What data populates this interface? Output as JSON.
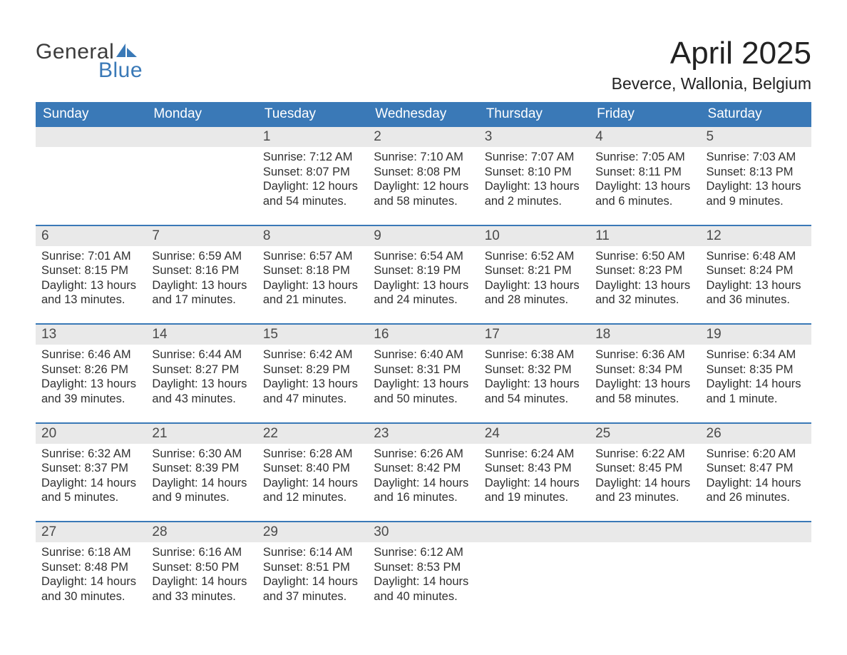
{
  "logo": {
    "word1": "General",
    "word2": "Blue",
    "text_color": "#3c3c3c",
    "accent_color": "#3a79b7"
  },
  "title": "April 2025",
  "location": "Beverce, Wallonia, Belgium",
  "colors": {
    "header_bg": "#3a79b7",
    "header_text": "#ffffff",
    "daynum_bg": "#e9e9e9",
    "daynum_text": "#4a4a4a",
    "body_text": "#303030",
    "week_divider": "#3a79b7",
    "page_bg": "#ffffff"
  },
  "type": "calendar-table",
  "columns": [
    "Sunday",
    "Monday",
    "Tuesday",
    "Wednesday",
    "Thursday",
    "Friday",
    "Saturday"
  ],
  "weeks": [
    [
      {
        "day": "",
        "sunrise": "",
        "sunset": "",
        "daylight": ""
      },
      {
        "day": "",
        "sunrise": "",
        "sunset": "",
        "daylight": ""
      },
      {
        "day": "1",
        "sunrise": "Sunrise: 7:12 AM",
        "sunset": "Sunset: 8:07 PM",
        "daylight": "Daylight: 12 hours and 54 minutes."
      },
      {
        "day": "2",
        "sunrise": "Sunrise: 7:10 AM",
        "sunset": "Sunset: 8:08 PM",
        "daylight": "Daylight: 12 hours and 58 minutes."
      },
      {
        "day": "3",
        "sunrise": "Sunrise: 7:07 AM",
        "sunset": "Sunset: 8:10 PM",
        "daylight": "Daylight: 13 hours and 2 minutes."
      },
      {
        "day": "4",
        "sunrise": "Sunrise: 7:05 AM",
        "sunset": "Sunset: 8:11 PM",
        "daylight": "Daylight: 13 hours and 6 minutes."
      },
      {
        "day": "5",
        "sunrise": "Sunrise: 7:03 AM",
        "sunset": "Sunset: 8:13 PM",
        "daylight": "Daylight: 13 hours and 9 minutes."
      }
    ],
    [
      {
        "day": "6",
        "sunrise": "Sunrise: 7:01 AM",
        "sunset": "Sunset: 8:15 PM",
        "daylight": "Daylight: 13 hours and 13 minutes."
      },
      {
        "day": "7",
        "sunrise": "Sunrise: 6:59 AM",
        "sunset": "Sunset: 8:16 PM",
        "daylight": "Daylight: 13 hours and 17 minutes."
      },
      {
        "day": "8",
        "sunrise": "Sunrise: 6:57 AM",
        "sunset": "Sunset: 8:18 PM",
        "daylight": "Daylight: 13 hours and 21 minutes."
      },
      {
        "day": "9",
        "sunrise": "Sunrise: 6:54 AM",
        "sunset": "Sunset: 8:19 PM",
        "daylight": "Daylight: 13 hours and 24 minutes."
      },
      {
        "day": "10",
        "sunrise": "Sunrise: 6:52 AM",
        "sunset": "Sunset: 8:21 PM",
        "daylight": "Daylight: 13 hours and 28 minutes."
      },
      {
        "day": "11",
        "sunrise": "Sunrise: 6:50 AM",
        "sunset": "Sunset: 8:23 PM",
        "daylight": "Daylight: 13 hours and 32 minutes."
      },
      {
        "day": "12",
        "sunrise": "Sunrise: 6:48 AM",
        "sunset": "Sunset: 8:24 PM",
        "daylight": "Daylight: 13 hours and 36 minutes."
      }
    ],
    [
      {
        "day": "13",
        "sunrise": "Sunrise: 6:46 AM",
        "sunset": "Sunset: 8:26 PM",
        "daylight": "Daylight: 13 hours and 39 minutes."
      },
      {
        "day": "14",
        "sunrise": "Sunrise: 6:44 AM",
        "sunset": "Sunset: 8:27 PM",
        "daylight": "Daylight: 13 hours and 43 minutes."
      },
      {
        "day": "15",
        "sunrise": "Sunrise: 6:42 AM",
        "sunset": "Sunset: 8:29 PM",
        "daylight": "Daylight: 13 hours and 47 minutes."
      },
      {
        "day": "16",
        "sunrise": "Sunrise: 6:40 AM",
        "sunset": "Sunset: 8:31 PM",
        "daylight": "Daylight: 13 hours and 50 minutes."
      },
      {
        "day": "17",
        "sunrise": "Sunrise: 6:38 AM",
        "sunset": "Sunset: 8:32 PM",
        "daylight": "Daylight: 13 hours and 54 minutes."
      },
      {
        "day": "18",
        "sunrise": "Sunrise: 6:36 AM",
        "sunset": "Sunset: 8:34 PM",
        "daylight": "Daylight: 13 hours and 58 minutes."
      },
      {
        "day": "19",
        "sunrise": "Sunrise: 6:34 AM",
        "sunset": "Sunset: 8:35 PM",
        "daylight": "Daylight: 14 hours and 1 minute."
      }
    ],
    [
      {
        "day": "20",
        "sunrise": "Sunrise: 6:32 AM",
        "sunset": "Sunset: 8:37 PM",
        "daylight": "Daylight: 14 hours and 5 minutes."
      },
      {
        "day": "21",
        "sunrise": "Sunrise: 6:30 AM",
        "sunset": "Sunset: 8:39 PM",
        "daylight": "Daylight: 14 hours and 9 minutes."
      },
      {
        "day": "22",
        "sunrise": "Sunrise: 6:28 AM",
        "sunset": "Sunset: 8:40 PM",
        "daylight": "Daylight: 14 hours and 12 minutes."
      },
      {
        "day": "23",
        "sunrise": "Sunrise: 6:26 AM",
        "sunset": "Sunset: 8:42 PM",
        "daylight": "Daylight: 14 hours and 16 minutes."
      },
      {
        "day": "24",
        "sunrise": "Sunrise: 6:24 AM",
        "sunset": "Sunset: 8:43 PM",
        "daylight": "Daylight: 14 hours and 19 minutes."
      },
      {
        "day": "25",
        "sunrise": "Sunrise: 6:22 AM",
        "sunset": "Sunset: 8:45 PM",
        "daylight": "Daylight: 14 hours and 23 minutes."
      },
      {
        "day": "26",
        "sunrise": "Sunrise: 6:20 AM",
        "sunset": "Sunset: 8:47 PM",
        "daylight": "Daylight: 14 hours and 26 minutes."
      }
    ],
    [
      {
        "day": "27",
        "sunrise": "Sunrise: 6:18 AM",
        "sunset": "Sunset: 8:48 PM",
        "daylight": "Daylight: 14 hours and 30 minutes."
      },
      {
        "day": "28",
        "sunrise": "Sunrise: 6:16 AM",
        "sunset": "Sunset: 8:50 PM",
        "daylight": "Daylight: 14 hours and 33 minutes."
      },
      {
        "day": "29",
        "sunrise": "Sunrise: 6:14 AM",
        "sunset": "Sunset: 8:51 PM",
        "daylight": "Daylight: 14 hours and 37 minutes."
      },
      {
        "day": "30",
        "sunrise": "Sunrise: 6:12 AM",
        "sunset": "Sunset: 8:53 PM",
        "daylight": "Daylight: 14 hours and 40 minutes."
      },
      {
        "day": "",
        "sunrise": "",
        "sunset": "",
        "daylight": ""
      },
      {
        "day": "",
        "sunrise": "",
        "sunset": "",
        "daylight": ""
      },
      {
        "day": "",
        "sunrise": "",
        "sunset": "",
        "daylight": ""
      }
    ]
  ]
}
